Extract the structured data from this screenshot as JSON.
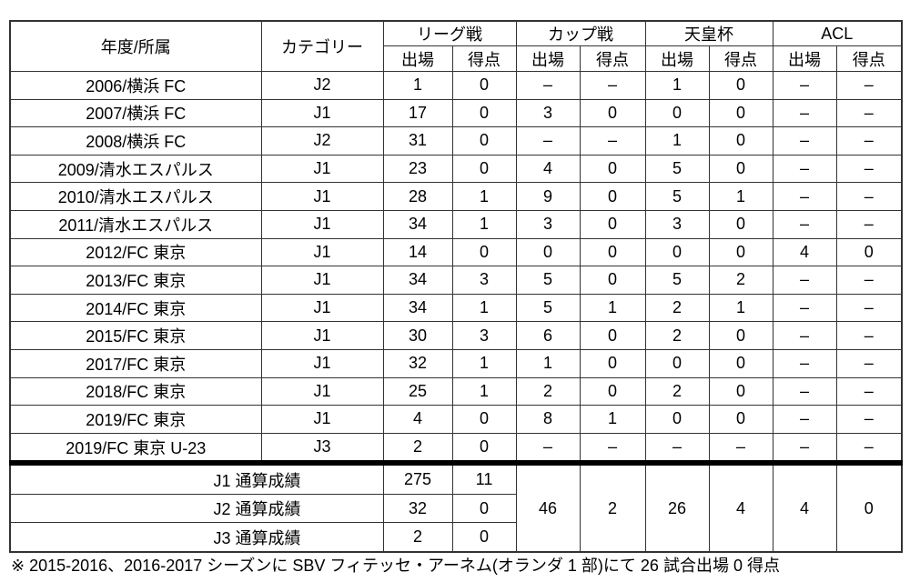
{
  "header": {
    "year_club": "年度/所属",
    "category": "カテゴリー",
    "groups": [
      "リーグ戦",
      "カップ戦",
      "天皇杯",
      "ACL"
    ],
    "apps": "出場",
    "goals": "得点"
  },
  "rows": [
    [
      "2006/横浜 FC",
      "J2",
      "1",
      "0",
      "–",
      "–",
      "1",
      "0",
      "–",
      "–"
    ],
    [
      "2007/横浜 FC",
      "J1",
      "17",
      "0",
      "3",
      "0",
      "0",
      "0",
      "–",
      "–"
    ],
    [
      "2008/横浜 FC",
      "J2",
      "31",
      "0",
      "–",
      "–",
      "1",
      "0",
      "–",
      "–"
    ],
    [
      "2009/清水エスパルス",
      "J1",
      "23",
      "0",
      "4",
      "0",
      "5",
      "0",
      "–",
      "–"
    ],
    [
      "2010/清水エスパルス",
      "J1",
      "28",
      "1",
      "9",
      "0",
      "5",
      "1",
      "–",
      "–"
    ],
    [
      "2011/清水エスパルス",
      "J1",
      "34",
      "1",
      "3",
      "0",
      "3",
      "0",
      "–",
      "–"
    ],
    [
      "2012/FC 東京",
      "J1",
      "14",
      "0",
      "0",
      "0",
      "0",
      "0",
      "4",
      "0"
    ],
    [
      "2013/FC 東京",
      "J1",
      "34",
      "3",
      "5",
      "0",
      "5",
      "2",
      "–",
      "–"
    ],
    [
      "2014/FC 東京",
      "J1",
      "34",
      "1",
      "5",
      "1",
      "2",
      "1",
      "–",
      "–"
    ],
    [
      "2015/FC 東京",
      "J1",
      "30",
      "3",
      "6",
      "0",
      "2",
      "0",
      "–",
      "–"
    ],
    [
      "2017/FC 東京",
      "J1",
      "32",
      "1",
      "1",
      "0",
      "0",
      "0",
      "–",
      "–"
    ],
    [
      "2018/FC 東京",
      "J1",
      "25",
      "1",
      "2",
      "0",
      "2",
      "0",
      "–",
      "–"
    ],
    [
      "2019/FC 東京",
      "J1",
      "4",
      "0",
      "8",
      "1",
      "0",
      "0",
      "–",
      "–"
    ],
    [
      "2019/FC 東京 U-23",
      "J3",
      "2",
      "0",
      "–",
      "–",
      "–",
      "–",
      "–",
      "–"
    ]
  ],
  "totals": {
    "league": [
      {
        "label": "J1 通算成績",
        "apps": "275",
        "goals": "11"
      },
      {
        "label": "J2 通算成績",
        "apps": "32",
        "goals": "0"
      },
      {
        "label": "J3 通算成績",
        "apps": "2",
        "goals": "0"
      }
    ],
    "cup": [
      "46",
      "2"
    ],
    "emperor": [
      "26",
      "4"
    ],
    "acl": [
      "4",
      "0"
    ]
  },
  "footnote": "※  2015-2016、2016-2017 シーズンに SBV フィテッセ・アーネム(オランダ 1 部)にて 26 試合出場 0 得点"
}
